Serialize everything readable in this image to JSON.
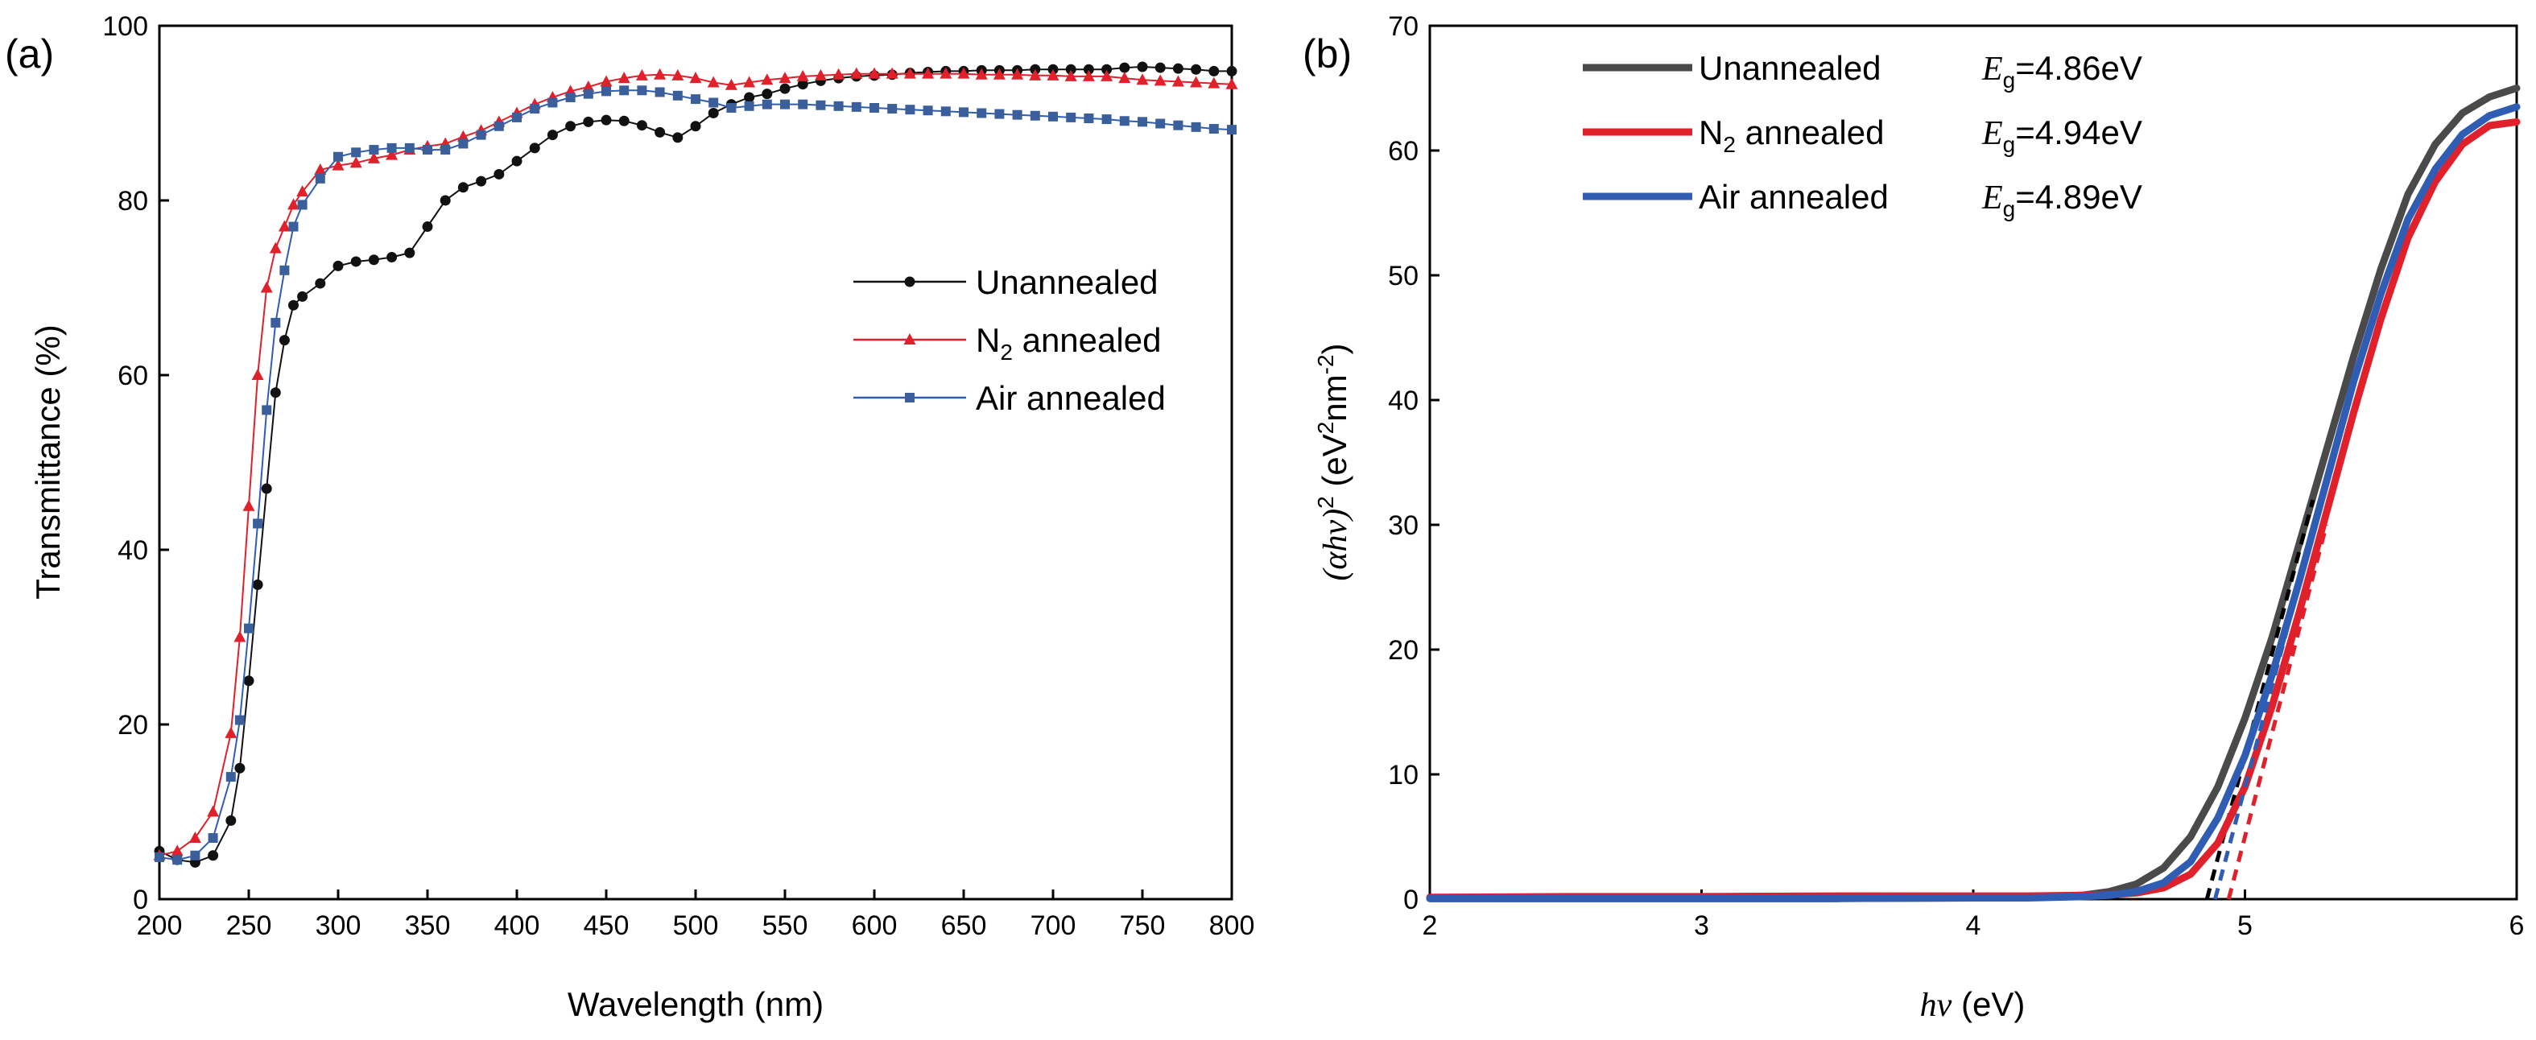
{
  "figure": {
    "panel_a_label": "(a)",
    "panel_b_label": "(b)"
  },
  "colors": {
    "unannealed": "#111111",
    "unannealed_b": "#4a4a4a",
    "n2": "#e0202a",
    "n2_marker": "#e0202a",
    "air": "#2f5db3",
    "air_marker": "#3a5f9a",
    "axis": "#000000"
  },
  "chart_data": [
    {
      "type": "line",
      "panel": "(a)",
      "xlabel": "Wavelength (nm)",
      "ylabel": "Transmittance (%)",
      "xlim": [
        200,
        800
      ],
      "ylim": [
        0,
        100
      ],
      "xticks": [
        200,
        250,
        300,
        350,
        400,
        450,
        500,
        550,
        600,
        650,
        700,
        750,
        800
      ],
      "yticks": [
        0,
        20,
        40,
        60,
        80,
        100
      ],
      "grid": false,
      "legend_position": "center-right",
      "series": [
        {
          "name": "Unannealed",
          "color_key": "unannealed",
          "marker": "circle",
          "x": [
            200,
            210,
            220,
            230,
            240,
            245,
            250,
            255,
            260,
            265,
            270,
            275,
            280,
            290,
            300,
            310,
            320,
            330,
            340,
            350,
            360,
            370,
            380,
            390,
            400,
            410,
            420,
            430,
            440,
            450,
            460,
            470,
            480,
            490,
            500,
            510,
            520,
            530,
            540,
            550,
            560,
            570,
            580,
            590,
            600,
            610,
            620,
            630,
            640,
            650,
            660,
            670,
            680,
            690,
            700,
            710,
            720,
            730,
            740,
            750,
            760,
            770,
            780,
            790,
            800
          ],
          "y": [
            5.5,
            4.5,
            4.2,
            5.0,
            9.0,
            15.0,
            25.0,
            36.0,
            47.0,
            58.0,
            64.0,
            68.0,
            69.0,
            70.5,
            72.5,
            73.0,
            73.2,
            73.5,
            74.0,
            77.0,
            80.0,
            81.5,
            82.2,
            83.0,
            84.5,
            86.0,
            87.5,
            88.5,
            89.0,
            89.2,
            89.1,
            88.6,
            87.8,
            87.2,
            88.5,
            90.0,
            91.0,
            91.8,
            92.2,
            92.8,
            93.3,
            93.7,
            94.0,
            94.2,
            94.3,
            94.4,
            94.6,
            94.7,
            94.8,
            94.8,
            94.9,
            94.9,
            94.9,
            95.0,
            95.0,
            95.0,
            95.0,
            95.0,
            95.2,
            95.3,
            95.2,
            95.1,
            95.0,
            94.8,
            94.8
          ]
        },
        {
          "name": "N₂ annealed",
          "name_parts": [
            "N",
            "2",
            " annealed"
          ],
          "color_key": "n2",
          "marker": "triangle",
          "x": [
            200,
            210,
            220,
            230,
            240,
            245,
            250,
            255,
            260,
            265,
            270,
            275,
            280,
            290,
            300,
            310,
            320,
            330,
            340,
            350,
            360,
            370,
            380,
            390,
            400,
            410,
            420,
            430,
            440,
            450,
            460,
            470,
            480,
            490,
            500,
            510,
            520,
            530,
            540,
            550,
            560,
            570,
            580,
            590,
            600,
            610,
            620,
            630,
            640,
            650,
            660,
            670,
            680,
            690,
            700,
            710,
            720,
            730,
            740,
            750,
            760,
            770,
            780,
            790,
            800
          ],
          "y": [
            5.0,
            5.5,
            7.0,
            10.0,
            19.0,
            30.0,
            45.0,
            60.0,
            70.0,
            74.5,
            77.0,
            79.5,
            81.0,
            83.5,
            84.0,
            84.3,
            84.8,
            85.2,
            85.8,
            86.2,
            86.5,
            87.3,
            88.0,
            89.0,
            90.0,
            91.0,
            91.8,
            92.5,
            93.0,
            93.6,
            94.0,
            94.3,
            94.4,
            94.3,
            94.0,
            93.5,
            93.2,
            93.5,
            93.8,
            94.0,
            94.2,
            94.3,
            94.4,
            94.5,
            94.5,
            94.5,
            94.5,
            94.5,
            94.5,
            94.5,
            94.4,
            94.4,
            94.4,
            94.3,
            94.3,
            94.2,
            94.2,
            94.2,
            94.0,
            93.8,
            93.7,
            93.6,
            93.5,
            93.4,
            93.3
          ]
        },
        {
          "name": "Air annealed",
          "color_key": "air",
          "marker": "square",
          "x": [
            200,
            210,
            220,
            230,
            240,
            245,
            250,
            255,
            260,
            265,
            270,
            275,
            280,
            290,
            300,
            310,
            320,
            330,
            340,
            350,
            360,
            370,
            380,
            390,
            400,
            410,
            420,
            430,
            440,
            450,
            460,
            470,
            480,
            490,
            500,
            510,
            520,
            530,
            540,
            550,
            560,
            570,
            580,
            590,
            600,
            610,
            620,
            630,
            640,
            650,
            660,
            670,
            680,
            690,
            700,
            710,
            720,
            730,
            740,
            750,
            760,
            770,
            780,
            790,
            800
          ],
          "y": [
            4.8,
            4.5,
            5.0,
            7.0,
            14.0,
            20.5,
            31.0,
            43.0,
            56.0,
            66.0,
            72.0,
            77.0,
            79.5,
            82.5,
            85.0,
            85.5,
            85.8,
            86.0,
            86.0,
            85.8,
            85.8,
            86.5,
            87.5,
            88.5,
            89.5,
            90.5,
            91.2,
            91.8,
            92.2,
            92.5,
            92.6,
            92.6,
            92.4,
            92.0,
            91.6,
            91.2,
            90.6,
            90.8,
            91.0,
            91.0,
            91.0,
            90.9,
            90.8,
            90.7,
            90.6,
            90.5,
            90.4,
            90.3,
            90.2,
            90.1,
            90.0,
            89.9,
            89.8,
            89.7,
            89.6,
            89.5,
            89.4,
            89.3,
            89.1,
            89.0,
            88.8,
            88.6,
            88.4,
            88.2,
            88.1
          ]
        }
      ]
    },
    {
      "type": "line",
      "panel": "(b)",
      "xlabel_parts": [
        "hν",
        " (eV)"
      ],
      "ylabel_parts": [
        "(αhν)",
        "2",
        " (eV",
        "2",
        "nm",
        "-2",
        ")"
      ],
      "xlim": [
        2,
        6
      ],
      "ylim": [
        0,
        70
      ],
      "xticks": [
        2,
        3,
        4,
        5,
        6
      ],
      "yticks": [
        0,
        10,
        20,
        30,
        40,
        50,
        60,
        70
      ],
      "grid": false,
      "legend_position": "top-left",
      "series": [
        {
          "name": "Unannealed",
          "eg_label": "=4.86eV",
          "eg_value": 4.86,
          "color_key": "unannealed_b",
          "x": [
            2.0,
            2.5,
            3.0,
            3.5,
            4.0,
            4.2,
            4.4,
            4.5,
            4.6,
            4.7,
            4.8,
            4.9,
            5.0,
            5.1,
            5.2,
            5.3,
            5.4,
            5.5,
            5.6,
            5.7,
            5.8,
            5.9,
            6.0
          ],
          "y": [
            0.05,
            0.05,
            0.05,
            0.05,
            0.1,
            0.15,
            0.3,
            0.6,
            1.2,
            2.5,
            5.0,
            9.0,
            14.5,
            21.0,
            28.5,
            36.0,
            43.5,
            50.5,
            56.5,
            60.5,
            63.0,
            64.3,
            65.0
          ],
          "tangent": {
            "x": [
              4.86,
              5.25
            ],
            "y": [
              0,
              32
            ]
          }
        },
        {
          "name": "N₂ annealed",
          "name_parts": [
            "N",
            "2",
            " annealed"
          ],
          "eg_label": "=4.94eV",
          "eg_value": 4.94,
          "color_key": "n2",
          "x": [
            2.0,
            2.5,
            3.0,
            3.5,
            4.0,
            4.2,
            4.4,
            4.5,
            4.6,
            4.7,
            4.8,
            4.9,
            5.0,
            5.1,
            5.2,
            5.3,
            5.4,
            5.5,
            5.6,
            5.7,
            5.8,
            5.9,
            6.0
          ],
          "y": [
            0.15,
            0.2,
            0.2,
            0.25,
            0.25,
            0.25,
            0.3,
            0.35,
            0.5,
            0.9,
            2.0,
            4.5,
            9.0,
            15.5,
            23.0,
            31.0,
            39.0,
            46.5,
            53.0,
            57.5,
            60.5,
            62.0,
            62.3
          ],
          "tangent": {
            "x": [
              4.94,
              5.3
            ],
            "y": [
              0,
              30
            ]
          }
        },
        {
          "name": "Air annealed",
          "eg_label": "=4.89eV",
          "eg_value": 4.89,
          "color_key": "air",
          "x": [
            2.0,
            2.5,
            3.0,
            3.5,
            4.0,
            4.2,
            4.4,
            4.5,
            4.6,
            4.7,
            4.8,
            4.9,
            5.0,
            5.1,
            5.2,
            5.3,
            5.4,
            5.5,
            5.6,
            5.7,
            5.8,
            5.9,
            6.0
          ],
          "y": [
            0.05,
            0.05,
            0.05,
            0.05,
            0.1,
            0.1,
            0.2,
            0.3,
            0.6,
            1.3,
            3.0,
            6.5,
            11.5,
            18.0,
            25.5,
            33.5,
            41.5,
            48.5,
            54.5,
            58.5,
            61.3,
            62.8,
            63.5
          ],
          "tangent": {
            "x": [
              4.89,
              5.27
            ],
            "y": [
              0,
              31
            ]
          }
        }
      ]
    }
  ]
}
